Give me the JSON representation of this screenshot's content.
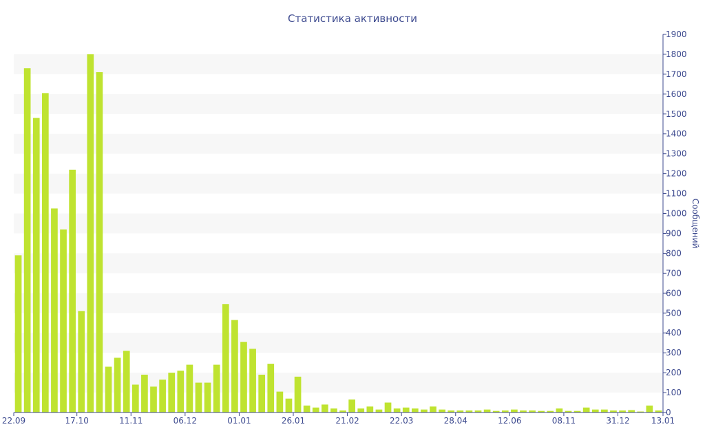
{
  "chart_data": {
    "type": "bar",
    "title": "Статистика активности",
    "xlabel": "",
    "ylabel": "Сообщений",
    "y_axis_side": "right",
    "ylim": [
      0,
      1900
    ],
    "y_ticks": [
      0,
      100,
      200,
      300,
      400,
      500,
      600,
      700,
      800,
      900,
      1000,
      1100,
      1200,
      1300,
      1400,
      1500,
      1600,
      1700,
      1800,
      1900
    ],
    "x_tick_labels": [
      {
        "label": "22.09",
        "bar_index": 0
      },
      {
        "label": "17.10",
        "bar_index": 6.5
      },
      {
        "label": "11.11",
        "bar_index": 12.5
      },
      {
        "label": "06.12",
        "bar_index": 18.5
      },
      {
        "label": "01.01",
        "bar_index": 24.5
      },
      {
        "label": "26.01",
        "bar_index": 30.5
      },
      {
        "label": "21.02",
        "bar_index": 36.5
      },
      {
        "label": "22.03",
        "bar_index": 42.5
      },
      {
        "label": "28.04",
        "bar_index": 48.5
      },
      {
        "label": "12.06",
        "bar_index": 54.5
      },
      {
        "label": "08.11",
        "bar_index": 60.5
      },
      {
        "label": "31.12",
        "bar_index": 66.5
      },
      {
        "label": "13.01",
        "bar_index": 72
      }
    ],
    "values": [
      790,
      1730,
      1480,
      1605,
      1025,
      920,
      1220,
      510,
      1800,
      1710,
      230,
      275,
      310,
      140,
      190,
      130,
      165,
      200,
      210,
      240,
      150,
      150,
      240,
      545,
      465,
      355,
      320,
      190,
      245,
      105,
      70,
      180,
      35,
      25,
      40,
      20,
      10,
      65,
      20,
      30,
      15,
      50,
      20,
      25,
      20,
      15,
      30,
      15,
      10,
      10,
      10,
      10,
      15,
      8,
      10,
      15,
      10,
      10,
      8,
      8,
      20,
      8,
      8,
      25,
      15,
      15,
      10,
      10,
      12,
      5,
      35,
      10
    ],
    "colors": {
      "bar": "#bfe330",
      "band": "#f7f7f7",
      "axis": "#3d4a8f",
      "text": "#3d4a8f"
    },
    "grid": "alternating horizontal bands"
  }
}
